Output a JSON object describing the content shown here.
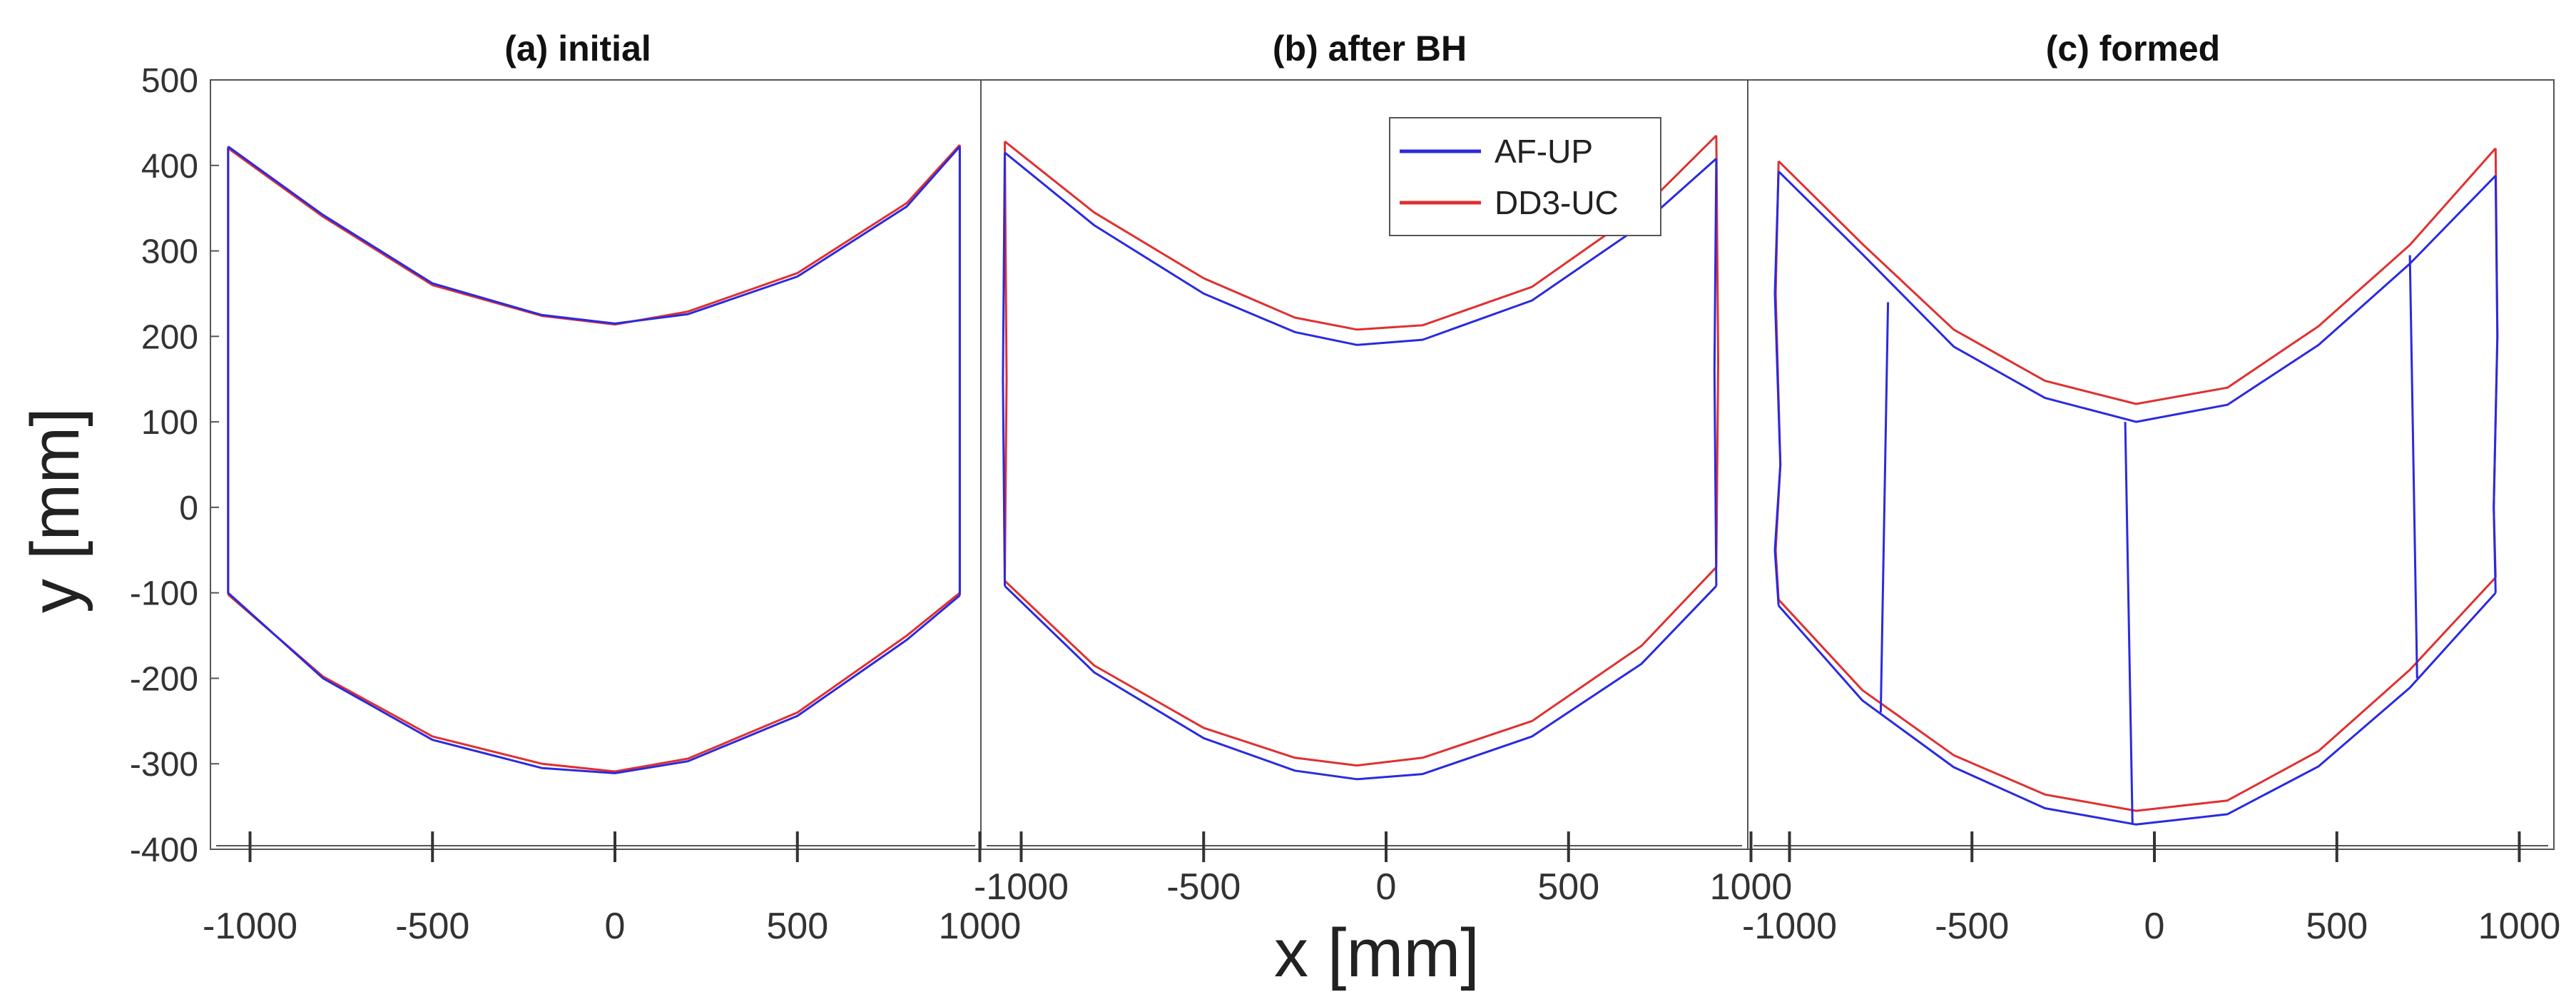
{
  "chart_data": {
    "type": "line",
    "ylabel": "y [mm]",
    "xlabel": "x [mm]",
    "ylim": [
      -400,
      500
    ],
    "yticks": [
      500,
      400,
      300,
      200,
      100,
      0,
      -100,
      -200,
      -300,
      -400
    ],
    "xlim": [
      -1000,
      1000
    ],
    "xticks": [
      -1000,
      -500,
      0,
      500,
      1000
    ],
    "legend": {
      "position": "top-right of panel (b)",
      "entries": [
        {
          "name": "AF-UP",
          "color": "#2a2ae0"
        },
        {
          "name": "DD3-UC",
          "color": "#e03030"
        }
      ]
    },
    "panels": [
      {
        "title": "(a) initial",
        "series": [
          {
            "name": "AF-UP",
            "color": "#2a2ae0",
            "top": {
              "x": [
                -1060,
                -800,
                -500,
                -200,
                0,
                200,
                500,
                800,
                945
              ],
              "y": [
                422,
                342,
                262,
                225,
                215,
                226,
                270,
                352,
                422
              ]
            },
            "bottom": {
              "x": [
                -1060,
                -800,
                -500,
                -200,
                0,
                200,
                500,
                800,
                945
              ],
              "y": [
                -100,
                -200,
                -272,
                -305,
                -311,
                -297,
                -244,
                -155,
                -103
              ]
            },
            "left": {
              "x": [
                -1060,
                -1060
              ],
              "y": [
                422,
                -100
              ]
            },
            "right": {
              "x": [
                945,
                945
              ],
              "y": [
                422,
                -103
              ]
            }
          },
          {
            "name": "DD3-UC",
            "color": "#e03030",
            "top": {
              "x": [
                -1060,
                -800,
                -500,
                -200,
                0,
                200,
                500,
                800,
                945
              ],
              "y": [
                420,
                340,
                260,
                224,
                214,
                229,
                274,
                356,
                424
              ]
            },
            "bottom": {
              "x": [
                -1060,
                -800,
                -500,
                -200,
                0,
                200,
                500,
                800,
                945
              ],
              "y": [
                -102,
                -198,
                -268,
                -300,
                -309,
                -294,
                -240,
                -150,
                -100
              ]
            },
            "left": {
              "x": [
                -1060,
                -1060
              ],
              "y": [
                420,
                -102
              ]
            },
            "right": {
              "x": [
                945,
                945
              ],
              "y": [
                424,
                -100
              ]
            }
          }
        ]
      },
      {
        "title": "(b) after BH",
        "series": [
          {
            "name": "AF-UP",
            "color": "#2a2ae0",
            "top": {
              "x": [
                -1045,
                -800,
                -500,
                -250,
                -80,
                100,
                400,
                700,
                905
              ],
              "y": [
                415,
                330,
                250,
                205,
                190,
                196,
                242,
                330,
                408
              ]
            },
            "bottom": {
              "x": [
                -1045,
                -800,
                -500,
                -250,
                -80,
                100,
                400,
                700,
                905
              ],
              "y": [
                -92,
                -193,
                -270,
                -308,
                -318,
                -312,
                -268,
                -183,
                -92
              ]
            },
            "left": {
              "x": [
                -1045,
                -1050,
                -1045
              ],
              "y": [
                415,
                150,
                -92
              ]
            },
            "right": {
              "x": [
                905,
                900,
                905
              ],
              "y": [
                408,
                160,
                -92
              ]
            }
          },
          {
            "name": "DD3-UC",
            "color": "#e03030",
            "top": {
              "x": [
                -1045,
                -800,
                -500,
                -250,
                -80,
                100,
                400,
                700,
                905
              ],
              "y": [
                428,
                345,
                268,
                222,
                208,
                213,
                258,
                348,
                435
              ]
            },
            "bottom": {
              "x": [
                -1045,
                -800,
                -500,
                -250,
                -80,
                100,
                400,
                700,
                905
              ],
              "y": [
                -86,
                -185,
                -258,
                -293,
                -302,
                -293,
                -250,
                -162,
                -70
              ]
            },
            "left": {
              "x": [
                -1045,
                -1040,
                -1045
              ],
              "y": [
                428,
                150,
                -86
              ]
            },
            "right": {
              "x": [
                905,
                910,
                905
              ],
              "y": [
                435,
                170,
                -70
              ]
            }
          }
        ]
      },
      {
        "title": "(c) formed",
        "series": [
          {
            "name": "AF-UP",
            "color": "#2a2ae0",
            "top": {
              "x": [
                -1030,
                -800,
                -550,
                -300,
                -50,
                200,
                450,
                700,
                935
              ],
              "y": [
                393,
                296,
                188,
                128,
                100,
                120,
                190,
                285,
                388
              ]
            },
            "bottom": {
              "x": [
                -1030,
                -800,
                -550,
                -300,
                -50,
                200,
                450,
                700,
                935
              ],
              "y": [
                -115,
                -226,
                -304,
                -352,
                -371,
                -359,
                -303,
                -211,
                -100
              ]
            },
            "left": {
              "x": [
                -1030,
                -1040,
                -1025,
                -1040,
                -1030
              ],
              "y": [
                393,
                250,
                50,
                -50,
                -115
              ]
            },
            "right": {
              "x": [
                935,
                940,
                930,
                935
              ],
              "y": [
                388,
                200,
                0,
                -100
              ]
            },
            "cross": [
              {
                "x": [
                  -730,
                  -750
                ],
                "y": [
                  240,
                  -240
                ]
              },
              {
                "x": [
                  -80,
                  -60
                ],
                "y": [
                  100,
                  -371
                ]
              },
              {
                "x": [
                  700,
                  720
                ],
                "y": [
                  295,
                  -200
                ]
              }
            ]
          },
          {
            "name": "DD3-UC",
            "color": "#e03030",
            "top": {
              "x": [
                -1030,
                -800,
                -550,
                -300,
                -50,
                200,
                450,
                700,
                935
              ],
              "y": [
                405,
                308,
                208,
                148,
                121,
                140,
                212,
                307,
                420
              ]
            },
            "bottom": {
              "x": [
                -1030,
                -800,
                -550,
                -300,
                -50,
                200,
                450,
                700,
                935
              ],
              "y": [
                -108,
                -214,
                -290,
                -336,
                -355,
                -343,
                -285,
                -190,
                -82
              ]
            },
            "left": {
              "x": [
                -1030,
                -1038,
                -1025,
                -1038,
                -1030
              ],
              "y": [
                405,
                250,
                50,
                -50,
                -108
              ]
            },
            "right": {
              "x": [
                935,
                940,
                930,
                935
              ],
              "y": [
                420,
                200,
                0,
                -82
              ]
            }
          }
        ]
      }
    ]
  }
}
